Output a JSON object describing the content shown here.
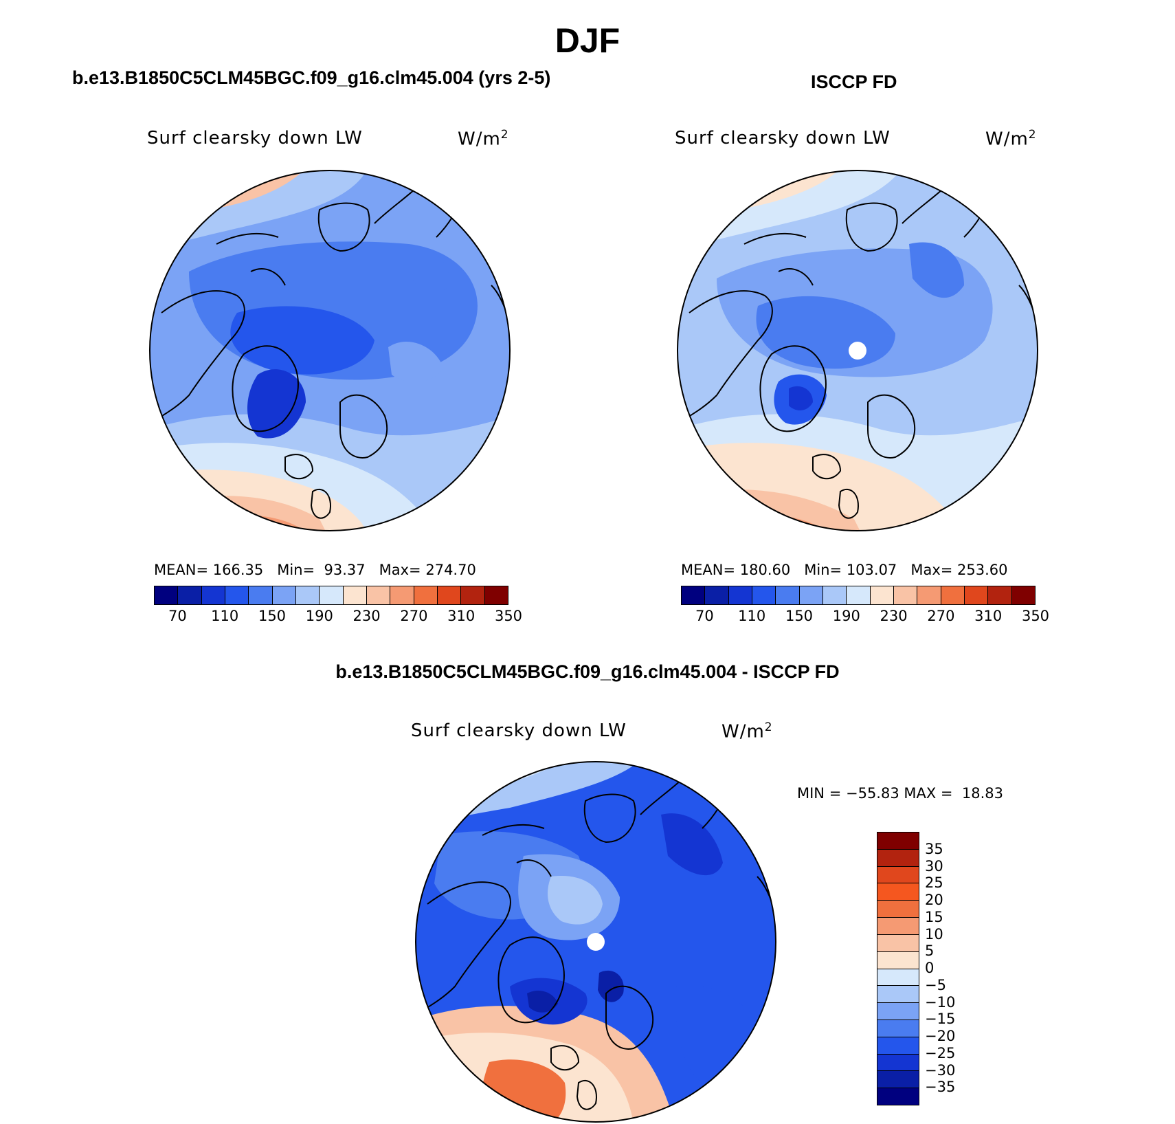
{
  "season": "DJF",
  "panels": {
    "model": {
      "title": "b.e13.B1850C5CLM45BGC.f09_g16.clm45.004 (yrs 2-5)",
      "variable": "Surf clearsky down LW",
      "units_base": "W/m",
      "units_exp": "2",
      "stats": {
        "mean_label": "MEAN=",
        "mean": "166.35",
        "min_label": "Min=",
        "min": "93.37",
        "max_label": "Max=",
        "max": "274.70"
      }
    },
    "obs": {
      "title": "ISCCP FD",
      "variable": "Surf clearsky down LW",
      "units_base": "W/m",
      "units_exp": "2",
      "stats": {
        "mean_label": "MEAN=",
        "mean": "180.60",
        "min_label": "Min=",
        "min": "103.07",
        "max_label": "Max=",
        "max": "253.60"
      }
    },
    "diff": {
      "title": "b.e13.B1850C5CLM45BGC.f09_g16.clm45.004 - ISCCP FD",
      "variable": "Surf clearsky down LW",
      "units_base": "W/m",
      "units_exp": "2",
      "stats": {
        "min_label": "MIN =",
        "min": "−55.83",
        "max_label": "MAX =",
        "max": "18.83"
      }
    }
  },
  "colorbar_abs": {
    "labels": [
      "70",
      "110",
      "150",
      "190",
      "230",
      "270",
      "310",
      "350"
    ],
    "colors": [
      "#00007f",
      "#0a1fa6",
      "#1435d2",
      "#2456ec",
      "#4a7cf0",
      "#7ba3f5",
      "#aac8f8",
      "#d6e8fb",
      "#fce4d0",
      "#f9c3a6",
      "#f59a73",
      "#f0703e",
      "#e0471d",
      "#b2230f",
      "#7f0000"
    ]
  },
  "colorbar_diff": {
    "labels": [
      "35",
      "30",
      "25",
      "20",
      "15",
      "10",
      "5",
      "0",
      "−5",
      "−10",
      "−15",
      "−20",
      "−25",
      "−30",
      "−35"
    ],
    "colors": [
      "#7f0000",
      "#b2230f",
      "#e0471d",
      "#f5571f",
      "#f0703e",
      "#f59a73",
      "#f9c3a6",
      "#fce4d0",
      "#d6e8fb",
      "#aac8f8",
      "#7ba3f5",
      "#4a7cf0",
      "#2456ec",
      "#1435d2",
      "#0a1fa6",
      "#00007f"
    ]
  },
  "chart_data": {
    "type": "map",
    "projection": "north polar stereographic",
    "maps": [
      {
        "name": "model",
        "mean": 166.35,
        "min": 93.37,
        "max": 274.7,
        "contour_levels": [
          70,
          90,
          110,
          130,
          150,
          170,
          190,
          210,
          230,
          250,
          270,
          290,
          310,
          330,
          350
        ]
      },
      {
        "name": "obs",
        "mean": 180.6,
        "min": 103.07,
        "max": 253.6,
        "contour_levels": [
          70,
          90,
          110,
          130,
          150,
          170,
          190,
          210,
          230,
          250,
          270,
          290,
          310,
          330,
          350
        ]
      },
      {
        "name": "difference",
        "min": -55.83,
        "max": 18.83,
        "contour_levels": [
          -35,
          -30,
          -25,
          -20,
          -15,
          -10,
          -5,
          0,
          5,
          10,
          15,
          20,
          25,
          30,
          35
        ]
      }
    ]
  }
}
